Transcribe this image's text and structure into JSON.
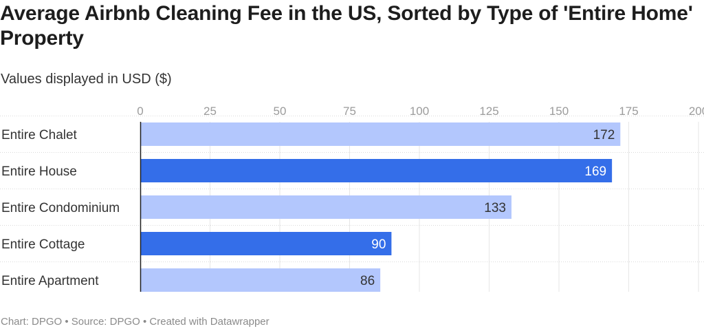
{
  "title": "Average Airbnb Cleaning Fee in the US, Sorted by Type of 'Entire Home' Property",
  "subtitle": "Values displayed in USD ($)",
  "footer": "Chart: DPGO • Source: DPGO • Created with Datawrapper",
  "colors": {
    "light_bar": "#b3c7fd",
    "dark_bar": "#346ee9",
    "text": "#333333",
    "light_label": "#333333",
    "dark_label": "#ffffff",
    "gridline": "#e6e6e6",
    "axis": "#1d1d1d",
    "tick": "#9b9b9b"
  },
  "chart_data": {
    "type": "bar",
    "orientation": "horizontal",
    "categories": [
      "Entire Chalet",
      "Entire House",
      "Entire Condominium",
      "Entire Cottage",
      "Entire Apartment"
    ],
    "values": [
      172,
      169,
      133,
      90,
      86
    ],
    "highlighted": [
      false,
      true,
      false,
      true,
      false
    ],
    "xlim": [
      0,
      200
    ],
    "xticks": [
      0,
      25,
      50,
      75,
      100,
      125,
      150,
      175,
      200
    ],
    "grid": true,
    "title": "Average Airbnb Cleaning Fee in the US, Sorted by Type of 'Entire Home' Property",
    "xlabel": "",
    "ylabel": ""
  }
}
